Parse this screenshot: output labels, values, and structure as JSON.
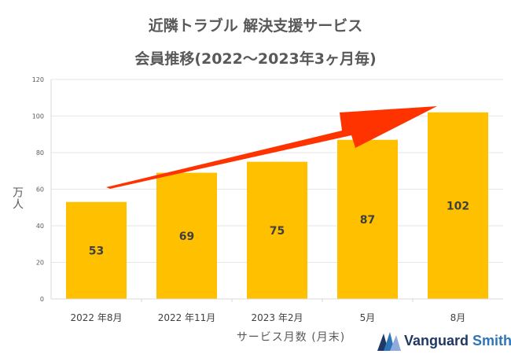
{
  "chart_data": {
    "type": "bar",
    "title": "近隣トラブル 解決支援サービス",
    "subtitle": "会員推移(2022～2023年3ヶ月毎)",
    "categories": [
      "2022 年8月",
      "2022 年11月",
      "2023 年2月",
      "5月",
      "8月"
    ],
    "values": [
      53,
      69,
      75,
      87,
      102
    ],
    "data_labels": [
      "53",
      "69",
      "75",
      "87",
      "102"
    ],
    "ylabel": "万人",
    "xlabel": "サービス月数 (月末)",
    "ylim": [
      0,
      120
    ],
    "yticks": [
      0,
      20,
      40,
      60,
      80,
      100,
      120
    ],
    "ytick_labels": [
      "0",
      "20",
      "40",
      "60",
      "80",
      "100",
      "120"
    ],
    "grid": true,
    "annotation": "red upward trend arrow",
    "colors": {
      "bar": "#ffc000",
      "arrow": "#ff3300",
      "grid": "#e6e6e6"
    }
  },
  "logo": {
    "text1": "Vanguard",
    "text2": "Smith"
  }
}
